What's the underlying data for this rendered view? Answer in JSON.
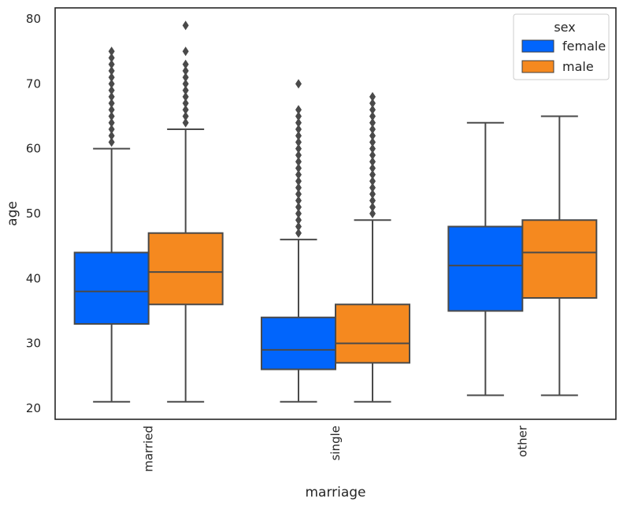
{
  "chart_data": {
    "type": "box",
    "xlabel": "marriage",
    "ylabel": "age",
    "ylim": [
      18.3,
      81.7
    ],
    "yticks": [
      20,
      30,
      40,
      50,
      60,
      70,
      80
    ],
    "categories": [
      "married",
      "single",
      "other"
    ],
    "grid": false,
    "legend": {
      "title": "sex",
      "placement": "top-right",
      "entries": [
        "female",
        "male"
      ]
    },
    "series": [
      {
        "name": "female",
        "color": "#0165fc",
        "boxes": [
          {
            "category": "married",
            "whisker_low": 21,
            "q1": 33,
            "median": 38,
            "q3": 44,
            "whisker_high": 60,
            "outliers": [
              61,
              62,
              63,
              64,
              65,
              66,
              67,
              68,
              69,
              70,
              71,
              72,
              73,
              74,
              75
            ]
          },
          {
            "category": "single",
            "whisker_low": 21,
            "q1": 26,
            "median": 29,
            "q3": 34,
            "whisker_high": 46,
            "outliers": [
              47,
              48,
              49,
              50,
              51,
              52,
              53,
              54,
              55,
              56,
              57,
              58,
              59,
              60,
              61,
              62,
              63,
              64,
              65,
              66,
              70
            ]
          },
          {
            "category": "other",
            "whisker_low": 22,
            "q1": 35,
            "median": 42,
            "q3": 48,
            "whisker_high": 64,
            "outliers": []
          }
        ]
      },
      {
        "name": "male",
        "color": "#f5891f",
        "boxes": [
          {
            "category": "married",
            "whisker_low": 21,
            "q1": 36,
            "median": 41,
            "q3": 47,
            "whisker_high": 63,
            "outliers": [
              64,
              65,
              66,
              67,
              68,
              69,
              70,
              71,
              72,
              73,
              75,
              79
            ]
          },
          {
            "category": "single",
            "whisker_low": 21,
            "q1": 27,
            "median": 30,
            "q3": 36,
            "whisker_high": 49,
            "outliers": [
              50,
              51,
              52,
              53,
              54,
              55,
              56,
              57,
              58,
              59,
              60,
              61,
              62,
              63,
              64,
              65,
              66,
              67,
              68
            ]
          },
          {
            "category": "other",
            "whisker_low": 22,
            "q1": 37,
            "median": 44,
            "q3": 49,
            "whisker_high": 65,
            "outliers": []
          }
        ]
      }
    ]
  }
}
